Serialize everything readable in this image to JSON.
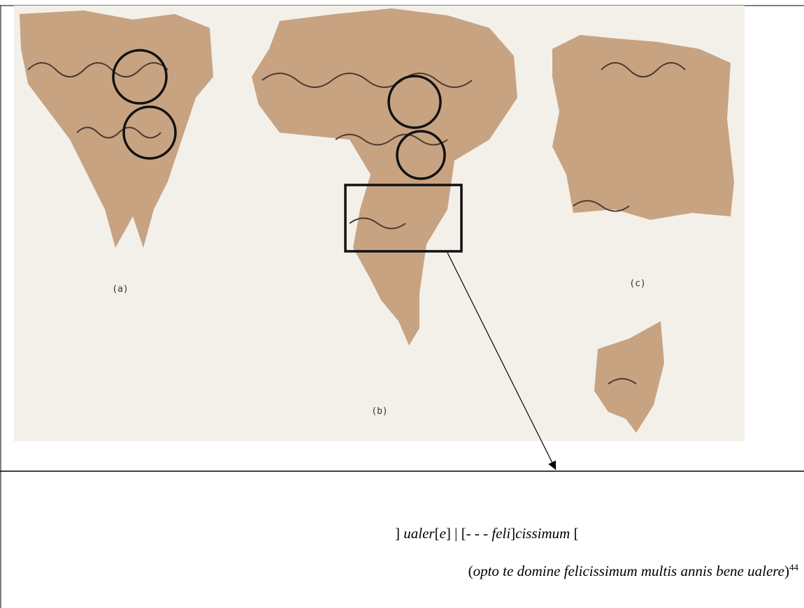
{
  "figure": {
    "labels": [
      "(a)",
      "(b)",
      "(c)"
    ]
  },
  "transcription": {
    "lines": [
      {
        "segments": [
          {
            "text": "] ",
            "style": "roman"
          },
          {
            "text": "ualer",
            "style": "italic"
          },
          {
            "text": "[",
            "style": "roman"
          },
          {
            "text": "e",
            "style": "italic"
          },
          {
            "text": "] | [- - - ",
            "style": "roman"
          },
          {
            "text": "feli",
            "style": "italic"
          },
          {
            "text": "]",
            "style": "roman"
          },
          {
            "text": "cissimum",
            "style": "italic"
          },
          {
            "text": " [",
            "style": "roman"
          }
        ]
      },
      {
        "segments": [
          {
            "text": "(",
            "style": "roman"
          },
          {
            "text": "opto te domine felicissimum multis annis bene ualere",
            "style": "italic"
          },
          {
            "text": ")",
            "style": "roman"
          },
          {
            "text": "44",
            "style": "sup"
          }
        ]
      }
    ]
  }
}
